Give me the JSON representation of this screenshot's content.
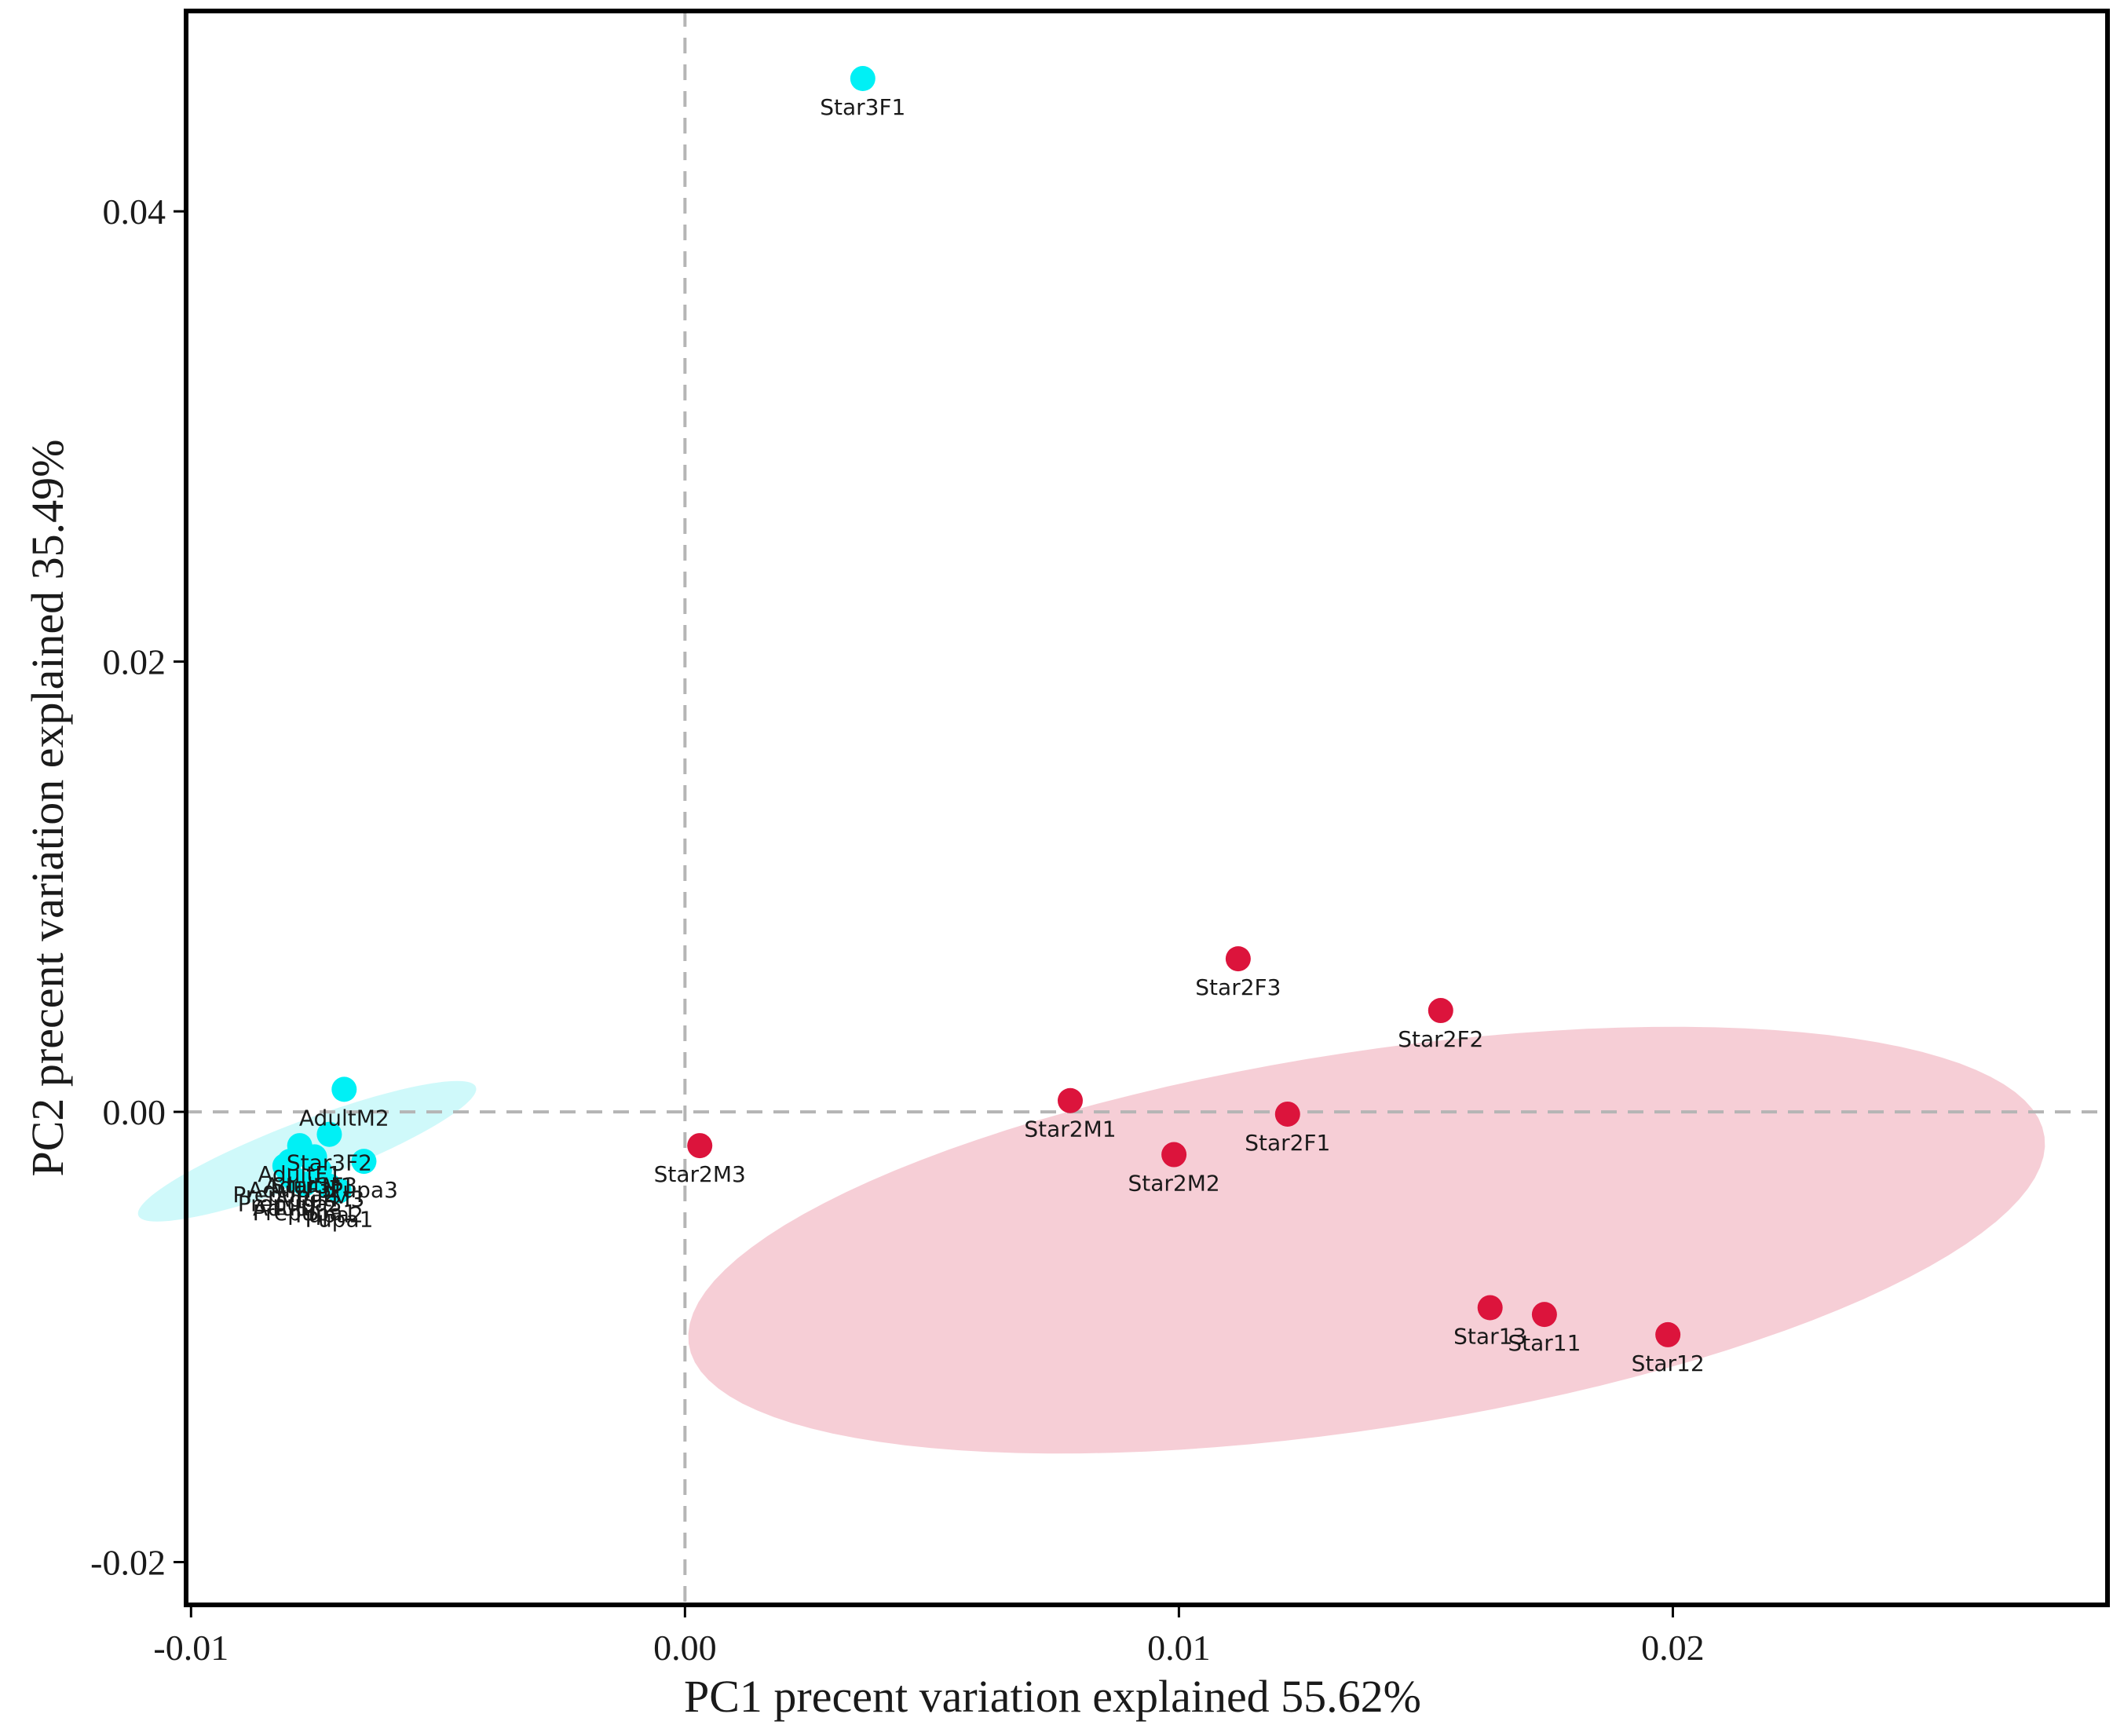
{
  "chart_data": {
    "type": "scatter",
    "title": "",
    "xlabel": "PC1 precent variation explained 55.62%",
    "ylabel": "PC2 precent variation explained 35.49%",
    "xlim": [
      -0.0101,
      0.0288
    ],
    "ylim": [
      -0.0219,
      0.0489
    ],
    "x_ticks": [
      -0.01,
      0.0,
      0.01,
      0.02
    ],
    "x_tick_labels": [
      "-0.01",
      "0.00",
      "0.01",
      "0.02"
    ],
    "y_ticks": [
      -0.02,
      0.0,
      0.02,
      0.04
    ],
    "y_tick_labels": [
      "-0.02",
      "0.00",
      "0.02",
      "0.04"
    ],
    "grid": false,
    "reference_lines": {
      "x": 0.0,
      "y": 0.0,
      "style": "dashed"
    },
    "series": [
      {
        "name": "cyan group",
        "color": "#00F0F5",
        "ellipse_color": "#CFF9FA",
        "ellipse": {
          "center": [
            -0.00765,
            -0.00175
          ],
          "semi_axes": [
            0.0045,
            0.0011
          ],
          "angle_deg": 42
        },
        "points": [
          {
            "label": "Star3F1",
            "x": 0.0036,
            "y": 0.0459
          },
          {
            "label": "AdultM2",
            "x": -0.0069,
            "y": 0.001
          },
          {
            "label": "Star3F2",
            "x": -0.0072,
            "y": -0.001
          },
          {
            "label": "Star3F3",
            "x": -0.0075,
            "y": -0.002
          },
          {
            "label": "Pupa3",
            "x": -0.0065,
            "y": -0.0022
          },
          {
            "label": "Pupa1",
            "x": -0.007,
            "y": -0.0035
          },
          {
            "label": "Pupa2",
            "x": -0.0072,
            "y": -0.0033
          },
          {
            "label": "AdultM1",
            "x": -0.0076,
            "y": -0.002
          },
          {
            "label": "AdultM3",
            "x": -0.0074,
            "y": -0.0026
          },
          {
            "label": "AdultF1",
            "x": -0.0078,
            "y": -0.0015
          },
          {
            "label": "AdultF2",
            "x": -0.0079,
            "y": -0.003
          },
          {
            "label": "AdultF3",
            "x": -0.008,
            "y": -0.0022
          },
          {
            "label": "Prepupa1",
            "x": -0.0077,
            "y": -0.0032
          },
          {
            "label": "Prepupa2",
            "x": -0.0081,
            "y": -0.0024
          },
          {
            "label": "Prepupa3",
            "x": -0.008,
            "y": -0.0028
          }
        ]
      },
      {
        "name": "red group",
        "color": "#DC143C",
        "ellipse_color": "#F6CED6",
        "ellipse": {
          "center": [
            0.0138,
            -0.0057
          ],
          "semi_axes": [
            0.0147,
            0.0079
          ],
          "angle_deg": 25
        },
        "points": [
          {
            "label": "Star2F3",
            "x": 0.0112,
            "y": 0.0068
          },
          {
            "label": "Star2F2",
            "x": 0.0153,
            "y": 0.0045
          },
          {
            "label": "Star2M1",
            "x": 0.0078,
            "y": 0.0005
          },
          {
            "label": "Star2F1",
            "x": 0.0122,
            "y": -0.0001
          },
          {
            "label": "Star2M2",
            "x": 0.0099,
            "y": -0.0019
          },
          {
            "label": "Star2M3",
            "x": 0.0003,
            "y": -0.0015
          },
          {
            "label": "Star13",
            "x": 0.0163,
            "y": -0.0087
          },
          {
            "label": "Star11",
            "x": 0.0174,
            "y": -0.009
          },
          {
            "label": "Star12",
            "x": 0.0199,
            "y": -0.0099
          }
        ]
      }
    ]
  }
}
